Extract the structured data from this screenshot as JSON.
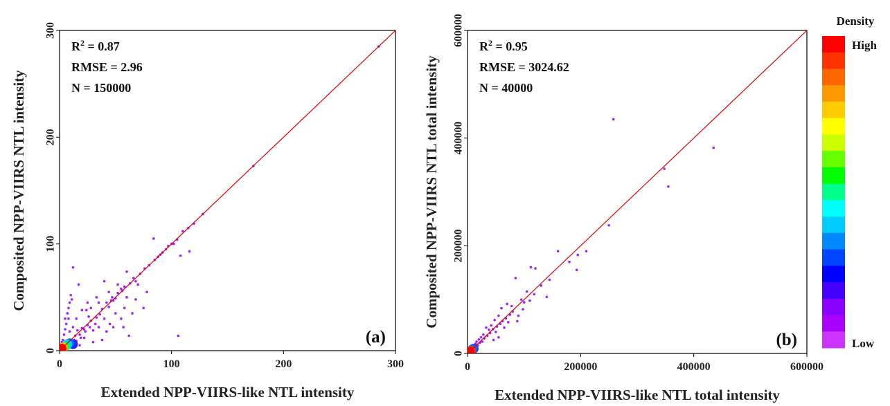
{
  "legend": {
    "title": "Density",
    "high_label": "High",
    "low_label": "Low",
    "colors": [
      "#ff0000",
      "#ff3300",
      "#ff6600",
      "#ff9900",
      "#ffcc00",
      "#ffff00",
      "#ccff00",
      "#66ff00",
      "#00ff00",
      "#00ff88",
      "#00ffff",
      "#00ccff",
      "#0088ff",
      "#0044ff",
      "#0000ff",
      "#4400ff",
      "#8800ff",
      "#aa00ff",
      "#cc33ff"
    ]
  },
  "chart_data": [
    {
      "type": "scatter",
      "panel_label": "(a)",
      "xlabel": "Extended NPP-VIIRS-like NTL intensity",
      "ylabel": "Composited NPP-VIIRS NTL intensity",
      "xlim": [
        0,
        300
      ],
      "ylim": [
        0,
        300
      ],
      "xticks": [
        "0",
        "100",
        "200",
        "300"
      ],
      "yticks": [
        "0",
        "100",
        "200",
        "300"
      ],
      "stats": [
        {
          "text": "R",
          "sup": "2",
          "rest": " = 0.87"
        },
        {
          "text": "RMSE = 2.96"
        },
        {
          "text": "N = 150000"
        }
      ],
      "fit_line": {
        "x": [
          0,
          300
        ],
        "y": [
          0,
          300
        ],
        "color": "#e00000"
      },
      "points": [
        [
          285,
          285
        ],
        [
          173,
          173
        ],
        [
          128,
          128
        ],
        [
          120,
          119
        ],
        [
          115,
          115
        ],
        [
          110,
          112
        ],
        [
          116,
          93
        ],
        [
          105,
          104
        ],
        [
          108,
          89
        ],
        [
          106,
          14
        ],
        [
          100,
          100
        ],
        [
          95,
          95
        ],
        [
          92,
          92
        ],
        [
          88,
          88
        ],
        [
          85,
          85
        ],
        [
          84,
          105
        ],
        [
          80,
          80
        ],
        [
          76,
          77
        ],
        [
          72,
          72
        ],
        [
          68,
          65
        ],
        [
          66,
          68
        ],
        [
          63,
          63
        ],
        [
          60,
          74
        ],
        [
          58,
          60
        ],
        [
          56,
          56
        ],
        [
          52,
          54
        ],
        [
          50,
          49
        ],
        [
          48,
          47
        ],
        [
          46,
          47
        ],
        [
          44,
          41
        ],
        [
          42,
          45
        ],
        [
          40,
          65
        ],
        [
          38,
          39
        ],
        [
          36,
          34
        ],
        [
          35,
          45
        ],
        [
          33,
          31
        ],
        [
          32,
          25
        ],
        [
          30,
          19
        ],
        [
          28,
          28
        ],
        [
          27,
          22
        ],
        [
          25,
          24
        ],
        [
          24,
          38
        ],
        [
          23,
          18
        ],
        [
          22,
          20
        ],
        [
          20,
          21
        ],
        [
          19,
          12
        ],
        [
          18,
          15
        ],
        [
          17,
          62
        ],
        [
          16,
          19
        ],
        [
          15,
          9
        ],
        [
          14,
          14
        ],
        [
          13,
          10
        ],
        [
          12,
          78
        ],
        [
          11,
          48
        ],
        [
          10,
          52
        ],
        [
          9,
          45
        ],
        [
          8,
          40
        ],
        [
          8,
          30
        ],
        [
          7,
          35
        ],
        [
          6,
          25
        ],
        [
          5,
          20
        ],
        [
          5,
          30
        ],
        [
          4,
          15
        ],
        [
          3,
          10
        ],
        [
          2,
          8
        ],
        [
          45,
          25
        ],
        [
          55,
          30
        ],
        [
          65,
          35
        ],
        [
          62,
          14
        ],
        [
          75,
          40
        ],
        [
          70,
          62
        ],
        [
          58,
          40
        ],
        [
          48,
          22
        ],
        [
          38,
          10
        ],
        [
          30,
          8
        ],
        [
          22,
          12
        ],
        [
          18,
          5
        ],
        [
          28,
          40
        ],
        [
          35,
          22
        ],
        [
          42,
          18
        ],
        [
          26,
          32
        ],
        [
          20,
          38
        ],
        [
          15,
          30
        ],
        [
          12,
          22
        ],
        [
          9,
          18
        ],
        [
          60,
          50
        ],
        [
          50,
          35
        ],
        [
          40,
          30
        ],
        [
          33,
          50
        ],
        [
          44,
          55
        ],
        [
          52,
          62
        ],
        [
          57,
          22
        ],
        [
          68,
          48
        ],
        [
          78,
          55
        ],
        [
          90,
          90
        ],
        [
          97,
          98
        ],
        [
          102,
          100
        ],
        [
          55,
          58
        ],
        [
          47,
          50
        ],
        [
          25,
          45
        ]
      ],
      "dense_core": [
        {
          "x": 2,
          "y": 2,
          "color": "#ff0000"
        },
        {
          "x": 3,
          "y": 3,
          "color": "#ffcc00"
        },
        {
          "x": 5,
          "y": 4,
          "color": "#00ff44"
        },
        {
          "x": 7,
          "y": 6,
          "color": "#00ccff"
        },
        {
          "x": 9,
          "y": 7,
          "color": "#0066ff"
        },
        {
          "x": 12,
          "y": 6,
          "color": "#2222ff"
        }
      ]
    },
    {
      "type": "scatter",
      "panel_label": "(b)",
      "xlabel": "Extended NPP-VIIRS-like NTL total intensity",
      "ylabel": "Composited NPP-VIIRS NTL total intensity",
      "xlim": [
        0,
        600000
      ],
      "ylim": [
        0,
        600000
      ],
      "xticks": [
        "0",
        "200000",
        "400000",
        "600000"
      ],
      "yticks": [
        "0",
        "200000",
        "400000",
        "600000"
      ],
      "stats": [
        {
          "text": "R",
          "sup": "2",
          "rest": " = 0.95"
        },
        {
          "text": "RMSE = 3024.62"
        },
        {
          "text": "N = 40000"
        }
      ],
      "fit_line": {
        "x": [
          0,
          600000
        ],
        "y": [
          0,
          600000
        ],
        "color": "#e00000"
      },
      "points": [
        [
          258000,
          435000
        ],
        [
          435000,
          382000
        ],
        [
          348000,
          343000
        ],
        [
          355000,
          310000
        ],
        [
          250000,
          238000
        ],
        [
          210000,
          190000
        ],
        [
          195000,
          183000
        ],
        [
          193000,
          155000
        ],
        [
          160000,
          190000
        ],
        [
          180000,
          170000
        ],
        [
          112000,
          160000
        ],
        [
          120000,
          158000
        ],
        [
          145000,
          137000
        ],
        [
          140000,
          105000
        ],
        [
          105000,
          115000
        ],
        [
          95000,
          100000
        ],
        [
          85000,
          140000
        ],
        [
          80000,
          78000
        ],
        [
          75000,
          72000
        ],
        [
          70000,
          92000
        ],
        [
          68000,
          65000
        ],
        [
          62000,
          60000
        ],
        [
          60000,
          84000
        ],
        [
          58000,
          55000
        ],
        [
          55000,
          70000
        ],
        [
          52000,
          50000
        ],
        [
          50000,
          40000
        ],
        [
          48000,
          62000
        ],
        [
          45000,
          45000
        ],
        [
          42000,
          52000
        ],
        [
          40000,
          38000
        ],
        [
          38000,
          44000
        ],
        [
          35000,
          33000
        ],
        [
          33000,
          48000
        ],
        [
          30000,
          28000
        ],
        [
          28000,
          35000
        ],
        [
          26000,
          22000
        ],
        [
          24000,
          30000
        ],
        [
          22000,
          20000
        ],
        [
          20000,
          26000
        ],
        [
          18000,
          15000
        ],
        [
          16000,
          22000
        ],
        [
          15000,
          12000
        ],
        [
          14000,
          18000
        ],
        [
          12000,
          10000
        ],
        [
          10000,
          14000
        ],
        [
          9000,
          8000
        ],
        [
          8000,
          12000
        ],
        [
          100000,
          95000
        ],
        [
          90000,
          70000
        ],
        [
          65000,
          48000
        ],
        [
          55000,
          30000
        ],
        [
          72000,
          58000
        ],
        [
          78000,
          88000
        ],
        [
          88000,
          60000
        ],
        [
          110000,
          98000
        ],
        [
          130000,
          126000
        ],
        [
          118000,
          110000
        ],
        [
          98000,
          82000
        ],
        [
          46000,
          25000
        ]
      ],
      "dense_core": [
        {
          "x": 4000,
          "y": 3000,
          "color": "#ff0000"
        },
        {
          "x": 6000,
          "y": 5000,
          "color": "#ff3300"
        },
        {
          "x": 9000,
          "y": 8000,
          "color": "#0066ff"
        },
        {
          "x": 11000,
          "y": 9000,
          "color": "#3333ff"
        }
      ]
    }
  ]
}
